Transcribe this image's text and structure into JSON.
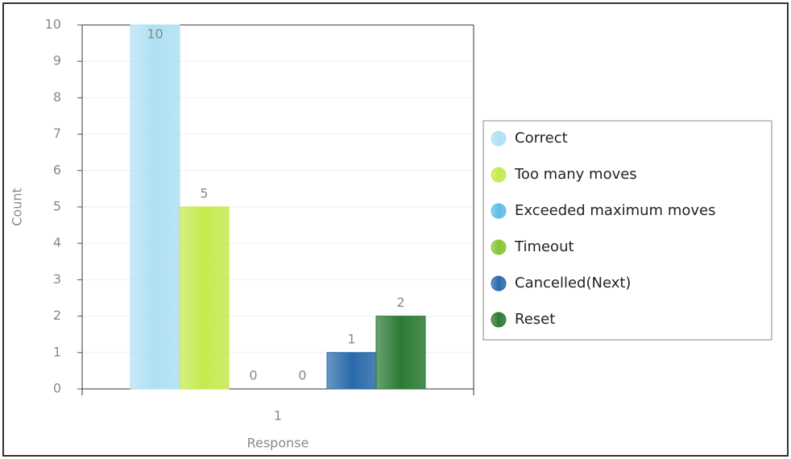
{
  "chart_data": {
    "type": "bar",
    "x_label": "Response",
    "y_label": "Count",
    "categories": [
      "1"
    ],
    "series": [
      {
        "name": "Correct",
        "color": "#aee0f4",
        "values": [
          10
        ]
      },
      {
        "name": "Too many moves",
        "color": "#c4ea4e",
        "values": [
          5
        ]
      },
      {
        "name": "Exceeded maximum moves",
        "color": "#5fbde6",
        "values": [
          0
        ]
      },
      {
        "name": "Timeout",
        "color": "#86c536",
        "values": [
          0
        ]
      },
      {
        "name": "Cancelled(Next)",
        "color": "#2a6aab",
        "values": [
          1
        ]
      },
      {
        "name": "Reset",
        "color": "#2b7a33",
        "values": [
          2
        ]
      }
    ],
    "ylim": [
      0,
      10
    ],
    "yticks": [
      0,
      1,
      2,
      3,
      4,
      5,
      6,
      7,
      8,
      9,
      10
    ],
    "grid": true,
    "legend": "right"
  }
}
